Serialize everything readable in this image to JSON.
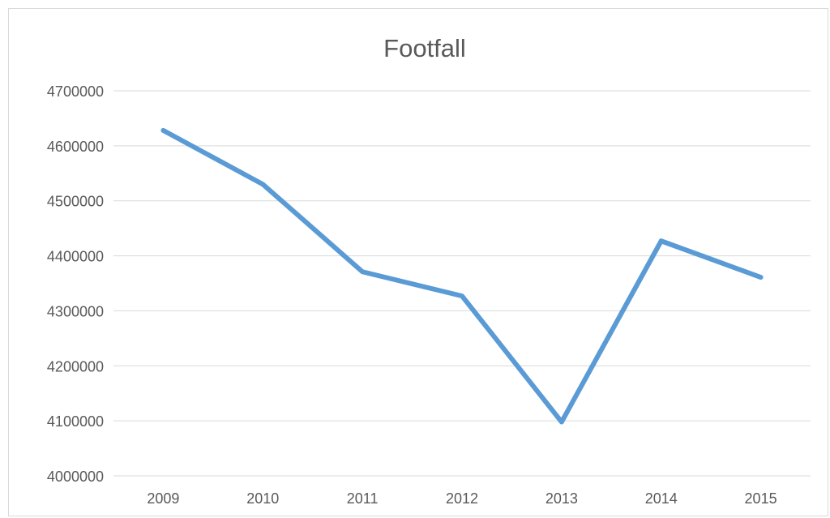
{
  "chart_data": {
    "type": "line",
    "title": "Footfall",
    "xlabel": "",
    "ylabel": "",
    "categories": [
      "2009",
      "2010",
      "2011",
      "2012",
      "2013",
      "2014",
      "2015"
    ],
    "series": [
      {
        "values": [
          4628000,
          4530000,
          4371000,
          4327000,
          4098000,
          4427000,
          4361000
        ],
        "color": "#5b9bd5"
      }
    ],
    "ylim": [
      4000000,
      4700000
    ],
    "yticks": [
      "4000000",
      "4100000",
      "4200000",
      "4300000",
      "4400000",
      "4500000",
      "4600000",
      "4700000"
    ],
    "grid": true,
    "legend": "none"
  }
}
